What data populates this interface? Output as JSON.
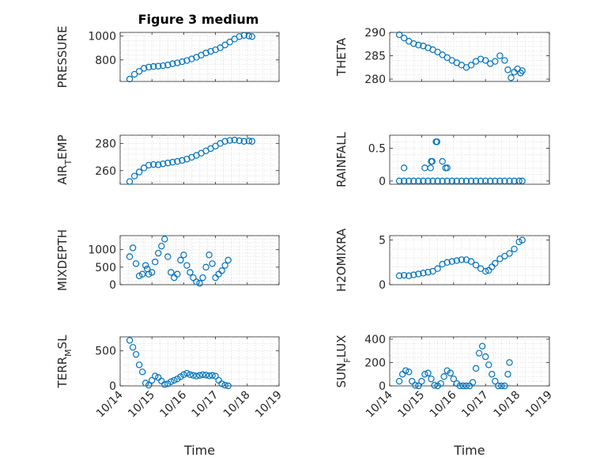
{
  "figure": {
    "title": "Figure 3 medium",
    "marker_color": "#0072BD",
    "x_tick_labels": [
      "10/14",
      "10/15",
      "10/16",
      "10/17",
      "10/18",
      "10/19"
    ],
    "x_axis_label": "Time",
    "ylabels": {
      "pressure": "PRESSURE",
      "theta": "THETA",
      "air_temp_base": "AIR",
      "air_temp_sub": "T",
      "air_temp_tail": "EMP",
      "rainfall": "RAINFALL",
      "mixdepth": "MIXDEPTH",
      "h2omixra": "H2OMIXRA",
      "terr_base": "TERR",
      "terr_sub": "M",
      "terr_tail": "SL",
      "sun_base": "SUN",
      "sun_sub": "F",
      "sun_tail": "LUX"
    }
  },
  "chart_data": [
    {
      "id": "pressure",
      "type": "scatter",
      "ylabel": "PRESSURE",
      "xlim": [
        "10/14",
        "10/19"
      ],
      "ylim": [
        620,
        1030
      ],
      "grid": true,
      "yticks": [
        800,
        1000
      ],
      "ytick_labels": [
        "800",
        "1000"
      ],
      "points": [
        [
          0.3,
          640
        ],
        [
          0.45,
          680
        ],
        [
          0.6,
          705
        ],
        [
          0.75,
          730
        ],
        [
          0.9,
          740
        ],
        [
          1.05,
          745
        ],
        [
          1.2,
          748
        ],
        [
          1.35,
          752
        ],
        [
          1.5,
          758
        ],
        [
          1.65,
          768
        ],
        [
          1.8,
          775
        ],
        [
          1.95,
          785
        ],
        [
          2.1,
          795
        ],
        [
          2.25,
          808
        ],
        [
          2.4,
          822
        ],
        [
          2.55,
          840
        ],
        [
          2.7,
          858
        ],
        [
          2.85,
          872
        ],
        [
          3.0,
          885
        ],
        [
          3.15,
          902
        ],
        [
          3.3,
          925
        ],
        [
          3.45,
          950
        ],
        [
          3.6,
          975
        ],
        [
          3.75,
          995
        ],
        [
          3.9,
          1005
        ],
        [
          4.05,
          1000
        ],
        [
          4.15,
          995
        ]
      ]
    },
    {
      "id": "theta",
      "type": "scatter",
      "ylabel": "THETA",
      "xlim": [
        "10/14",
        "10/19"
      ],
      "ylim": [
        279.5,
        290
      ],
      "grid": true,
      "yticks": [
        280,
        285,
        290
      ],
      "ytick_labels": [
        "280",
        "285",
        "290"
      ],
      "points": [
        [
          0.3,
          289.5
        ],
        [
          0.45,
          288.8
        ],
        [
          0.6,
          288.1
        ],
        [
          0.75,
          287.6
        ],
        [
          0.9,
          287.3
        ],
        [
          1.05,
          287.1
        ],
        [
          1.2,
          286.7
        ],
        [
          1.35,
          286.3
        ],
        [
          1.5,
          285.8
        ],
        [
          1.65,
          285.2
        ],
        [
          1.8,
          284.6
        ],
        [
          1.95,
          284.0
        ],
        [
          2.1,
          283.5
        ],
        [
          2.25,
          283.0
        ],
        [
          2.4,
          282.5
        ],
        [
          2.55,
          283.0
        ],
        [
          2.7,
          283.8
        ],
        [
          2.85,
          284.3
        ],
        [
          3.0,
          284.0
        ],
        [
          3.15,
          283.3
        ],
        [
          3.3,
          283.8
        ],
        [
          3.45,
          285.0
        ],
        [
          3.6,
          284.0
        ],
        [
          3.7,
          282.0
        ],
        [
          3.8,
          280.3
        ],
        [
          3.9,
          281.5
        ],
        [
          4.0,
          282.2
        ],
        [
          4.1,
          281.3
        ],
        [
          4.15,
          281.8
        ]
      ]
    },
    {
      "id": "air_temp",
      "type": "scatter",
      "ylabel": "AIR_TEMP",
      "xlim": [
        "10/14",
        "10/19"
      ],
      "ylim": [
        250,
        286
      ],
      "grid": true,
      "yticks": [
        260,
        280
      ],
      "ytick_labels": [
        "260",
        "280"
      ],
      "points": [
        [
          0.3,
          252
        ],
        [
          0.45,
          256
        ],
        [
          0.6,
          259
        ],
        [
          0.75,
          262
        ],
        [
          0.9,
          264
        ],
        [
          1.05,
          264.5
        ],
        [
          1.2,
          264.3
        ],
        [
          1.35,
          265
        ],
        [
          1.5,
          265.6
        ],
        [
          1.65,
          266.2
        ],
        [
          1.8,
          266.8
        ],
        [
          1.95,
          267.5
        ],
        [
          2.1,
          268.5
        ],
        [
          2.25,
          269.8
        ],
        [
          2.4,
          271.2
        ],
        [
          2.55,
          272.8
        ],
        [
          2.7,
          274.5
        ],
        [
          2.85,
          276.2
        ],
        [
          3.0,
          278
        ],
        [
          3.15,
          280
        ],
        [
          3.3,
          281.5
        ],
        [
          3.45,
          282.2
        ],
        [
          3.6,
          282.5
        ],
        [
          3.75,
          282
        ],
        [
          3.9,
          281.5
        ],
        [
          4.05,
          281.8
        ],
        [
          4.15,
          281.5
        ]
      ]
    },
    {
      "id": "rainfall",
      "type": "scatter",
      "ylabel": "RAINFALL",
      "xlim": [
        "10/14",
        "10/19"
      ],
      "ylim": [
        -0.05,
        0.7
      ],
      "grid": true,
      "yticks": [
        0,
        0.5
      ],
      "ytick_labels": [
        "0",
        "0.5"
      ],
      "points": [
        [
          0.3,
          0
        ],
        [
          0.45,
          0
        ],
        [
          0.6,
          0
        ],
        [
          0.75,
          0
        ],
        [
          0.9,
          0
        ],
        [
          1.05,
          0
        ],
        [
          1.2,
          0
        ],
        [
          1.35,
          0
        ],
        [
          1.5,
          0
        ],
        [
          1.65,
          0
        ],
        [
          1.8,
          0
        ],
        [
          1.95,
          0
        ],
        [
          2.1,
          0
        ],
        [
          2.25,
          0
        ],
        [
          2.4,
          0
        ],
        [
          2.55,
          0
        ],
        [
          2.7,
          0
        ],
        [
          2.85,
          0
        ],
        [
          3.0,
          0
        ],
        [
          3.15,
          0
        ],
        [
          3.3,
          0
        ],
        [
          3.45,
          0
        ],
        [
          3.6,
          0
        ],
        [
          3.75,
          0
        ],
        [
          3.9,
          0
        ],
        [
          4.05,
          0
        ],
        [
          4.15,
          0
        ],
        [
          0.45,
          0.2
        ],
        [
          1.1,
          0.2
        ],
        [
          1.28,
          0.2
        ],
        [
          1.3,
          0.3
        ],
        [
          1.33,
          0.3
        ],
        [
          1.45,
          0.6
        ],
        [
          1.48,
          0.6
        ],
        [
          1.65,
          0.3
        ],
        [
          1.75,
          0.2
        ],
        [
          1.8,
          0.2
        ]
      ]
    },
    {
      "id": "mixdepth",
      "type": "scatter",
      "ylabel": "MIXDEPTH",
      "xlim": [
        "10/14",
        "10/19"
      ],
      "ylim": [
        0,
        1400
      ],
      "grid": true,
      "yticks": [
        0,
        500,
        1000
      ],
      "ytick_labels": [
        "0",
        "500",
        "1000"
      ],
      "points": [
        [
          0.3,
          800
        ],
        [
          0.4,
          1050
        ],
        [
          0.5,
          600
        ],
        [
          0.6,
          250
        ],
        [
          0.7,
          300
        ],
        [
          0.8,
          550
        ],
        [
          0.85,
          450
        ],
        [
          0.9,
          300
        ],
        [
          1.0,
          350
        ],
        [
          1.1,
          650
        ],
        [
          1.2,
          900
        ],
        [
          1.3,
          1100
        ],
        [
          1.4,
          1300
        ],
        [
          1.5,
          800
        ],
        [
          1.6,
          350
        ],
        [
          1.7,
          200
        ],
        [
          1.8,
          300
        ],
        [
          1.9,
          700
        ],
        [
          2.0,
          850
        ],
        [
          2.1,
          550
        ],
        [
          2.2,
          350
        ],
        [
          2.3,
          200
        ],
        [
          2.4,
          80
        ],
        [
          2.5,
          40
        ],
        [
          2.6,
          200
        ],
        [
          2.7,
          500
        ],
        [
          2.8,
          850
        ],
        [
          2.9,
          600
        ],
        [
          3.0,
          200
        ],
        [
          3.1,
          300
        ],
        [
          3.2,
          400
        ],
        [
          3.3,
          550
        ],
        [
          3.4,
          700
        ]
      ]
    },
    {
      "id": "h2omixra",
      "type": "scatter",
      "ylabel": "H2OMIXRA",
      "xlim": [
        "10/14",
        "10/19"
      ],
      "ylim": [
        0,
        5.5
      ],
      "grid": true,
      "yticks": [
        0,
        5
      ],
      "ytick_labels": [
        "0",
        "5"
      ],
      "points": [
        [
          0.3,
          1.0
        ],
        [
          0.45,
          1.05
        ],
        [
          0.6,
          1.0
        ],
        [
          0.75,
          1.1
        ],
        [
          0.9,
          1.2
        ],
        [
          1.05,
          1.3
        ],
        [
          1.2,
          1.4
        ],
        [
          1.35,
          1.5
        ],
        [
          1.5,
          1.8
        ],
        [
          1.65,
          2.3
        ],
        [
          1.8,
          2.5
        ],
        [
          1.95,
          2.6
        ],
        [
          2.1,
          2.7
        ],
        [
          2.25,
          2.8
        ],
        [
          2.4,
          2.8
        ],
        [
          2.55,
          2.6
        ],
        [
          2.7,
          2.2
        ],
        [
          2.85,
          1.8
        ],
        [
          3.0,
          1.5
        ],
        [
          3.1,
          1.6
        ],
        [
          3.2,
          2.0
        ],
        [
          3.3,
          2.4
        ],
        [
          3.45,
          2.9
        ],
        [
          3.6,
          3.2
        ],
        [
          3.75,
          3.5
        ],
        [
          3.9,
          4.0
        ],
        [
          4.05,
          4.8
        ],
        [
          4.15,
          5.0
        ]
      ]
    },
    {
      "id": "terr_msl",
      "type": "scatter",
      "ylabel": "TERR_MSL",
      "xlim": [
        "10/14",
        "10/19"
      ],
      "ylim": [
        0,
        700
      ],
      "grid": true,
      "yticks": [
        0,
        500
      ],
      "ytick_labels": [
        "0",
        "500"
      ],
      "points": [
        [
          0.3,
          650
        ],
        [
          0.4,
          550
        ],
        [
          0.5,
          450
        ],
        [
          0.6,
          300
        ],
        [
          0.7,
          200
        ],
        [
          0.8,
          40
        ],
        [
          0.9,
          10
        ],
        [
          1.0,
          80
        ],
        [
          1.1,
          140
        ],
        [
          1.2,
          120
        ],
        [
          1.3,
          70
        ],
        [
          1.4,
          20
        ],
        [
          1.5,
          30
        ],
        [
          1.6,
          60
        ],
        [
          1.7,
          80
        ],
        [
          1.8,
          100
        ],
        [
          1.9,
          130
        ],
        [
          2.0,
          160
        ],
        [
          2.1,
          180
        ],
        [
          2.2,
          160
        ],
        [
          2.3,
          150
        ],
        [
          2.4,
          140
        ],
        [
          2.5,
          150
        ],
        [
          2.6,
          160
        ],
        [
          2.7,
          155
        ],
        [
          2.8,
          145
        ],
        [
          2.9,
          150
        ],
        [
          3.0,
          140
        ],
        [
          3.1,
          80
        ],
        [
          3.2,
          30
        ],
        [
          3.3,
          10
        ],
        [
          3.4,
          0
        ]
      ]
    },
    {
      "id": "sun_flux",
      "type": "scatter",
      "ylabel": "SUN_FLUX",
      "xlim": [
        "10/14",
        "10/19"
      ],
      "ylim": [
        0,
        420
      ],
      "grid": true,
      "yticks": [
        0,
        200,
        400
      ],
      "ytick_labels": [
        "0",
        "200",
        "400"
      ],
      "points": [
        [
          0.3,
          40
        ],
        [
          0.4,
          100
        ],
        [
          0.5,
          130
        ],
        [
          0.6,
          120
        ],
        [
          0.7,
          40
        ],
        [
          0.8,
          5
        ],
        [
          0.9,
          0
        ],
        [
          1.0,
          40
        ],
        [
          1.1,
          100
        ],
        [
          1.2,
          110
        ],
        [
          1.3,
          60
        ],
        [
          1.4,
          5
        ],
        [
          1.5,
          0
        ],
        [
          1.6,
          20
        ],
        [
          1.7,
          80
        ],
        [
          1.8,
          130
        ],
        [
          1.9,
          110
        ],
        [
          2.0,
          60
        ],
        [
          2.1,
          20
        ],
        [
          2.2,
          0
        ],
        [
          2.3,
          0
        ],
        [
          2.4,
          0
        ],
        [
          2.5,
          0
        ],
        [
          2.6,
          30
        ],
        [
          2.7,
          150
        ],
        [
          2.8,
          280
        ],
        [
          2.9,
          340
        ],
        [
          3.0,
          250
        ],
        [
          3.1,
          180
        ],
        [
          3.2,
          100
        ],
        [
          3.3,
          40
        ],
        [
          3.4,
          0
        ],
        [
          3.5,
          0
        ],
        [
          3.6,
          0
        ],
        [
          3.7,
          100
        ],
        [
          3.75,
          200
        ]
      ]
    }
  ]
}
